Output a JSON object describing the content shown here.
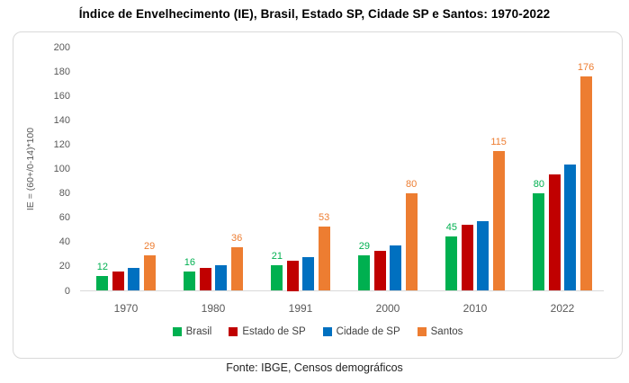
{
  "title": "Índice de Envelhecimento (IE), Brasil, Estado SP, Cidade SP e Santos: 1970-2022",
  "footer": "Fonte: IBGE, Censos demográficos",
  "colors": {
    "brasil": "#00B050",
    "estado_sp": "#C00000",
    "cidade_sp": "#0070C0",
    "santos": "#ED7D31",
    "axis_text": "#595959",
    "legend_text": "#404040",
    "axis_line": "#D9D9D9",
    "card_border": "#D9D9D9",
    "title_text": "#000000"
  },
  "chart_data": {
    "type": "bar",
    "title": "Índice de Envelhecimento (IE), Brasil, Estado SP, Cidade SP e Santos: 1970-2022",
    "categories": [
      "1970",
      "1980",
      "1991",
      "2000",
      "2010",
      "2022"
    ],
    "series": [
      {
        "name": "Brasil",
        "color": "#00B050",
        "values": [
          12,
          16,
          21,
          29,
          45,
          80
        ],
        "show_labels": true
      },
      {
        "name": "Estado de SP",
        "color": "#C00000",
        "values": [
          16,
          19,
          25,
          33,
          54,
          96
        ],
        "show_labels": false
      },
      {
        "name": "Cidade de SP",
        "color": "#0070C0",
        "values": [
          19,
          21,
          28,
          37,
          57,
          104
        ],
        "show_labels": false
      },
      {
        "name": "Santos",
        "color": "#ED7D31",
        "values": [
          29,
          36,
          53,
          80,
          115,
          176
        ],
        "show_labels": true
      }
    ],
    "xlabel": "",
    "ylabel": "IE = (60+/0-14)*100",
    "y_ticks": [
      0,
      20,
      40,
      60,
      80,
      100,
      120,
      140,
      160,
      180,
      200
    ],
    "ylim": [
      0,
      200
    ],
    "grid": false,
    "legend_position": "bottom",
    "source": "Fonte: IBGE, Censos demográficos"
  }
}
